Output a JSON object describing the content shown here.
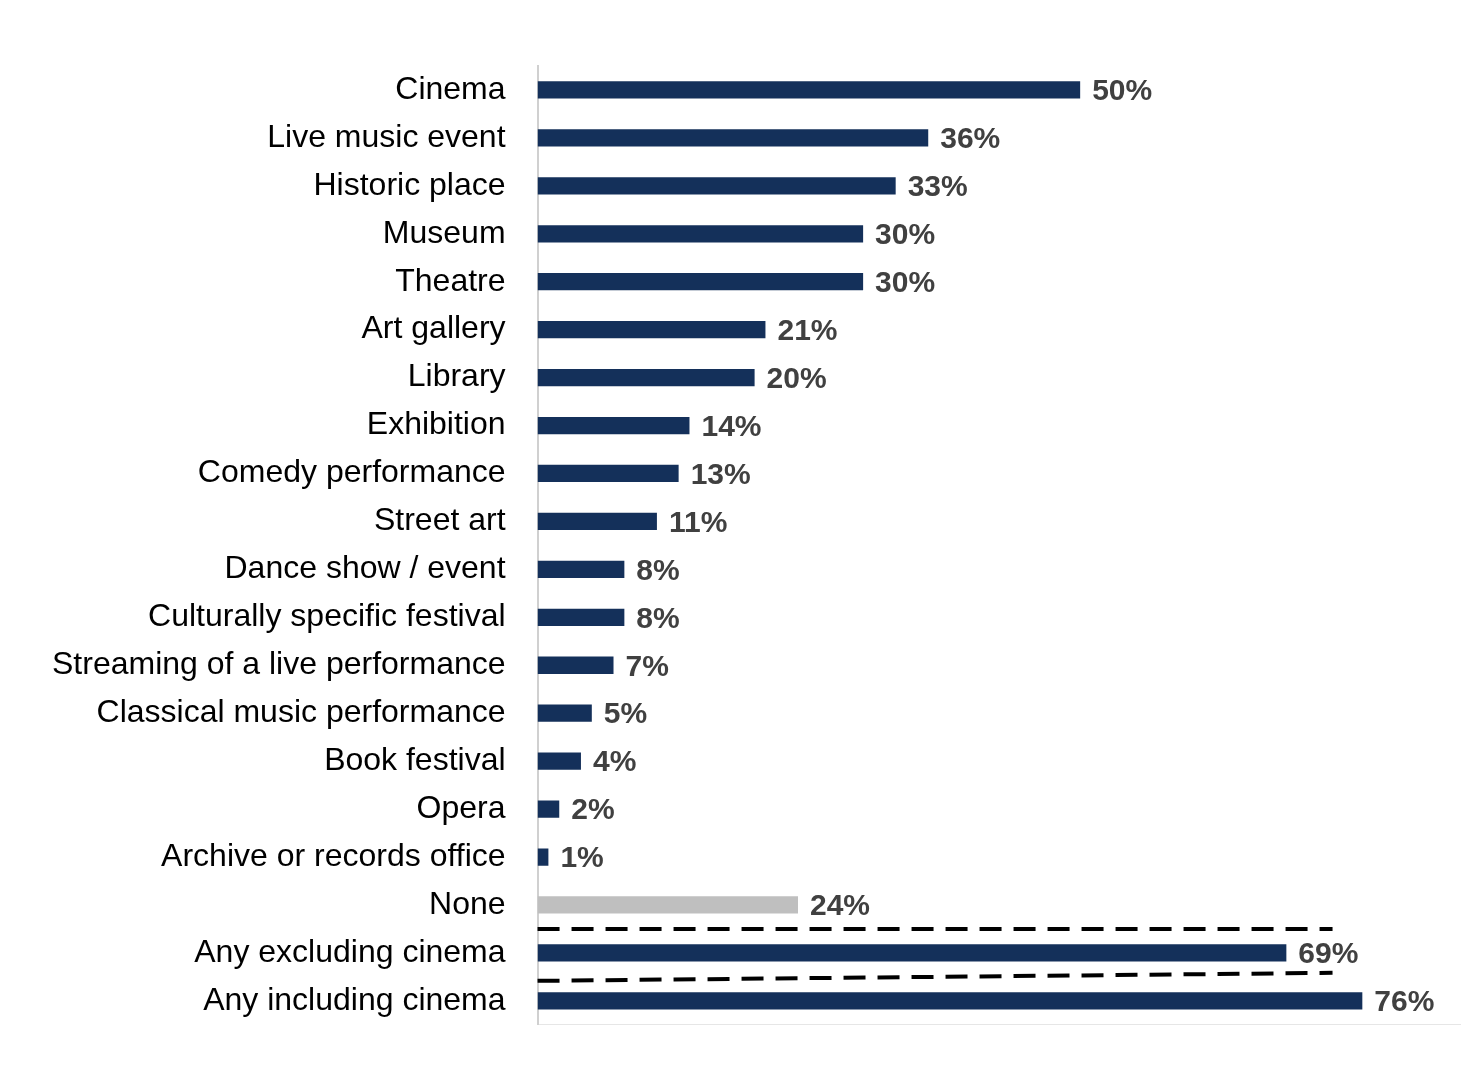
{
  "chart_data": {
    "type": "bar",
    "orientation": "horizontal",
    "categories": [
      "Cinema",
      "Live music event",
      "Historic place",
      "Museum",
      "Theatre",
      "Art gallery",
      "Library",
      "Exhibition",
      "Comedy performance",
      "Street art",
      "Dance show / event",
      "Culturally specific festival",
      "Streaming of a live performance",
      "Classical music performance",
      "Book festival",
      "Opera",
      "Archive or records office",
      "None",
      "Any excluding cinema",
      "Any including cinema"
    ],
    "values": [
      50,
      36,
      33,
      30,
      30,
      21,
      20,
      14,
      13,
      11,
      8,
      8,
      7,
      5,
      4,
      2,
      1,
      24,
      69,
      76
    ],
    "value_labels": [
      "50%",
      "36%",
      "33%",
      "30%",
      "30%",
      "21%",
      "20%",
      "14%",
      "13%",
      "11%",
      "8%",
      "8%",
      "7%",
      "5%",
      "4%",
      "2%",
      "1%",
      "24%",
      "69%",
      "76%"
    ],
    "colors": [
      "#14305a",
      "#14305a",
      "#14305a",
      "#14305a",
      "#14305a",
      "#14305a",
      "#14305a",
      "#14305a",
      "#14305a",
      "#14305a",
      "#14305a",
      "#14305a",
      "#14305a",
      "#14305a",
      "#14305a",
      "#14305a",
      "#14305a",
      "#bfbfbf",
      "#14305a",
      "#14305a"
    ],
    "xlim": [
      0,
      85
    ],
    "data_labels": true,
    "tick_labels": "y",
    "grid": false
  }
}
